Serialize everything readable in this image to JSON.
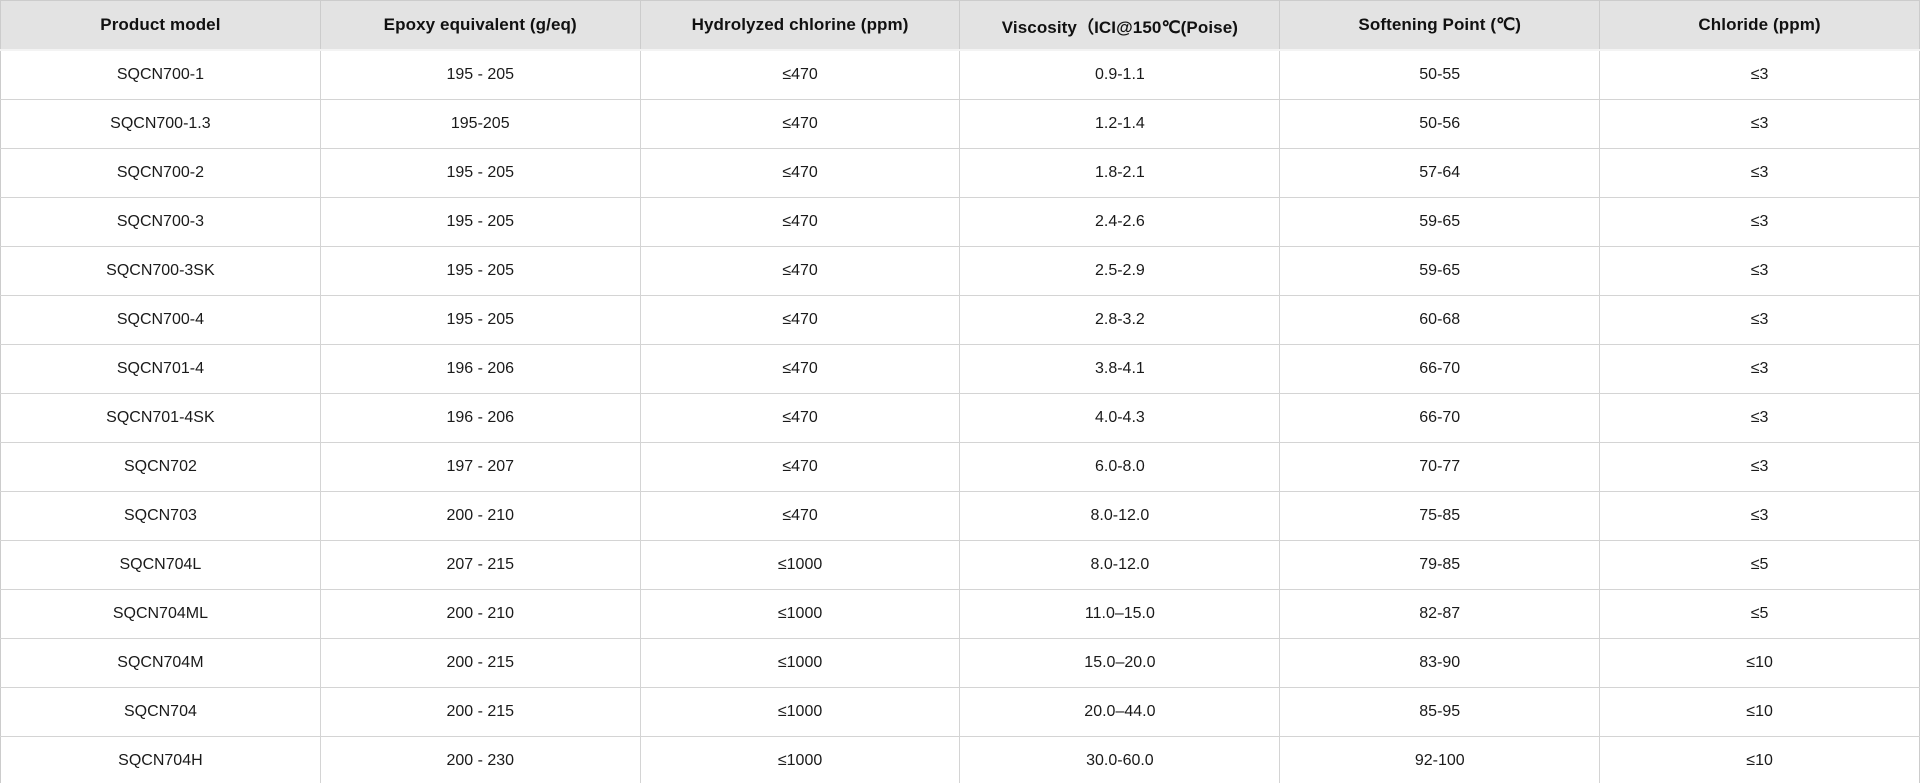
{
  "table": {
    "headers": [
      "Product model",
      "Epoxy equivalent (g/eq)",
      "Hydrolyzed chlorine (ppm)",
      "Viscosity（ICI@150℃(Poise)",
      "Softening Point (℃)",
      "Chloride (ppm)"
    ],
    "rows": [
      [
        "SQCN700-1",
        "195 - 205",
        "≤470",
        "0.9-1.1",
        "50-55",
        "≤3"
      ],
      [
        "SQCN700-1.3",
        "195-205",
        "≤470",
        "1.2-1.4",
        "50-56",
        "≤3"
      ],
      [
        "SQCN700-2",
        "195 - 205",
        "≤470",
        "1.8-2.1",
        "57-64",
        "≤3"
      ],
      [
        "SQCN700-3",
        "195 - 205",
        "≤470",
        "2.4-2.6",
        "59-65",
        "≤3"
      ],
      [
        "SQCN700-3SK",
        "195 - 205",
        "≤470",
        "2.5-2.9",
        "59-65",
        "≤3"
      ],
      [
        "SQCN700-4",
        "195 - 205",
        "≤470",
        "2.8-3.2",
        "60-68",
        "≤3"
      ],
      [
        "SQCN701-4",
        "196 - 206",
        "≤470",
        "3.8-4.1",
        "66-70",
        "≤3"
      ],
      [
        "SQCN701-4SK",
        "196 - 206",
        "≤470",
        "4.0-4.3",
        "66-70",
        "≤3"
      ],
      [
        "SQCN702",
        "197 - 207",
        "≤470",
        "6.0-8.0",
        "70-77",
        "≤3"
      ],
      [
        "SQCN703",
        "200 - 210",
        "≤470",
        "8.0-12.0",
        "75-85",
        "≤3"
      ],
      [
        "SQCN704L",
        "207 - 215",
        "≤1000",
        "8.0-12.0",
        "79-85",
        "≤5"
      ],
      [
        "SQCN704ML",
        "200 - 210",
        "≤1000",
        "11.0–15.0",
        "82-87",
        "≤5"
      ],
      [
        "SQCN704M",
        "200 - 215",
        "≤1000",
        "15.0–20.0",
        "83-90",
        "≤10"
      ],
      [
        "SQCN704",
        "200 - 215",
        "≤1000",
        "20.0–44.0",
        "85-95",
        "≤10"
      ],
      [
        "SQCN704H",
        "200 - 230",
        "≤1000",
        "30.0-60.0",
        "92-100",
        "≤10"
      ]
    ]
  },
  "chart_data": {
    "type": "table",
    "title": "Product specification table",
    "columns": [
      "Product model",
      "Epoxy equivalent (g/eq)",
      "Hydrolyzed chlorine (ppm)",
      "Viscosity（ICI@150℃(Poise)",
      "Softening Point (℃)",
      "Chloride (ppm)"
    ],
    "rows": [
      [
        "SQCN700-1",
        "195 - 205",
        "≤470",
        "0.9-1.1",
        "50-55",
        "≤3"
      ],
      [
        "SQCN700-1.3",
        "195-205",
        "≤470",
        "1.2-1.4",
        "50-56",
        "≤3"
      ],
      [
        "SQCN700-2",
        "195 - 205",
        "≤470",
        "1.8-2.1",
        "57-64",
        "≤3"
      ],
      [
        "SQCN700-3",
        "195 - 205",
        "≤470",
        "2.4-2.6",
        "59-65",
        "≤3"
      ],
      [
        "SQCN700-3SK",
        "195 - 205",
        "≤470",
        "2.5-2.9",
        "59-65",
        "≤3"
      ],
      [
        "SQCN700-4",
        "195 - 205",
        "≤470",
        "2.8-3.2",
        "60-68",
        "≤3"
      ],
      [
        "SQCN701-4",
        "196 - 206",
        "≤470",
        "3.8-4.1",
        "66-70",
        "≤3"
      ],
      [
        "SQCN701-4SK",
        "196 - 206",
        "≤470",
        "4.0-4.3",
        "66-70",
        "≤3"
      ],
      [
        "SQCN702",
        "197 - 207",
        "≤470",
        "6.0-8.0",
        "70-77",
        "≤3"
      ],
      [
        "SQCN703",
        "200 - 210",
        "≤470",
        "8.0-12.0",
        "75-85",
        "≤3"
      ],
      [
        "SQCN704L",
        "207 - 215",
        "≤1000",
        "8.0-12.0",
        "79-85",
        "≤5"
      ],
      [
        "SQCN704ML",
        "200 - 210",
        "≤1000",
        "11.0–15.0",
        "82-87",
        "≤5"
      ],
      [
        "SQCN704M",
        "200 - 215",
        "≤1000",
        "15.0–20.0",
        "83-90",
        "≤10"
      ],
      [
        "SQCN704",
        "200 - 215",
        "≤1000",
        "20.0–44.0",
        "85-95",
        "≤10"
      ],
      [
        "SQCN704H",
        "200 - 230",
        "≤1000",
        "30.0-60.0",
        "92-100",
        "≤10"
      ]
    ]
  },
  "colors": {
    "header_bg": "#e3e3e3",
    "row_bg": "#ffffff",
    "border": "#cccccc",
    "text": "#1a1a1a"
  }
}
